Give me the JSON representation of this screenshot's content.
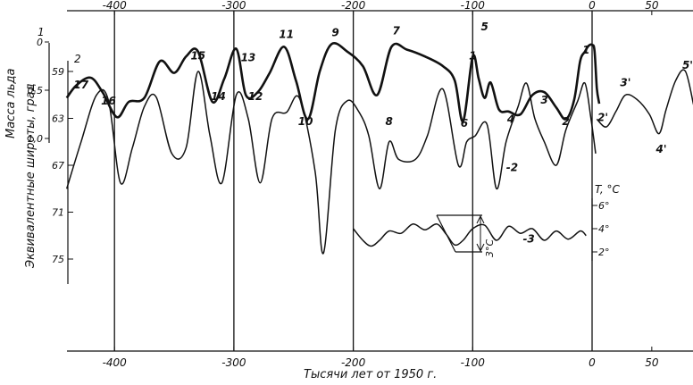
{
  "chart_data": {
    "type": "line",
    "xlabel": "Тысячи лет от 1950 г.",
    "x_ticks_bottom": [
      -400,
      -300,
      -200,
      -100,
      0,
      50
    ],
    "x_ticks_bottom_labels": [
      "-400",
      "-300",
      "-200",
      "-100",
      "0",
      "50"
    ],
    "x_ticks_top": [
      -400,
      -300,
      -200,
      -100,
      0,
      50
    ],
    "x_ticks_top_labels": [
      "-400",
      "-300",
      "-200",
      "-100",
      "0",
      "50"
    ],
    "xlim": [
      -440,
      85
    ],
    "axis_ice": {
      "label": "Масса льда",
      "ticks": [
        0,
        0.5,
        1.0
      ],
      "tick_labels": [
        "0",
        "0,5",
        "1,0"
      ],
      "extra_label": "1"
    },
    "axis_lat": {
      "label": "Эквивалентные широты, град",
      "ticks": [
        59,
        63,
        67,
        71,
        75
      ],
      "tick_labels": [
        "59",
        "63",
        "67",
        "71",
        "75"
      ],
      "extra_label": "2"
    },
    "axis_temp": {
      "label": "T, °C",
      "ticks": [
        6,
        4,
        2
      ],
      "tick_labels": [
        "6°",
        "4°",
        "2°"
      ],
      "scale_label": "3°C"
    },
    "series": [
      {
        "name": "1",
        "style": "thick",
        "x": [
          -440,
          -432,
          -420,
          -410,
          -398,
          -388,
          -375,
          -362,
          -350,
          -340,
          -330,
          -318,
          -308,
          -298,
          -290,
          -280,
          -270,
          -258,
          -248,
          -238,
          -228,
          -218,
          -205,
          -192,
          -180,
          -168,
          -155,
          -140,
          -125,
          -115,
          -108,
          -100,
          -95,
          -90,
          -85,
          -78,
          -70,
          -60,
          -50,
          -40,
          -30,
          -22,
          -15,
          -10,
          -6,
          -3,
          0,
          2,
          4,
          6
        ],
        "y": [
          0.58,
          0.45,
          0.37,
          0.52,
          0.78,
          0.62,
          0.58,
          0.2,
          0.32,
          0.15,
          0.1,
          0.62,
          0.38,
          0.07,
          0.55,
          0.52,
          0.32,
          0.05,
          0.4,
          0.8,
          0.3,
          0.02,
          0.1,
          0.25,
          0.55,
          0.05,
          0.08,
          0.15,
          0.25,
          0.4,
          0.82,
          0.15,
          0.38,
          0.58,
          0.42,
          0.7,
          0.72,
          0.75,
          0.55,
          0.52,
          0.68,
          0.8,
          0.6,
          0.2,
          0.1,
          0.04,
          0.03,
          0.09,
          0.48,
          0.64
        ]
      },
      {
        "name": "2",
        "style": "thin",
        "x": [
          -440,
          -428,
          -415,
          -405,
          -395,
          -385,
          -375,
          -365,
          -352,
          -340,
          -330,
          -320,
          -310,
          -298,
          -288,
          -278,
          -268,
          -256,
          -245,
          -232,
          -225,
          -215,
          -205,
          -195,
          -187,
          -178,
          -170,
          -162,
          -148,
          -138,
          -125,
          -112,
          -105,
          -98,
          -88,
          -80,
          -72,
          -62,
          -55,
          -48,
          -40,
          -30,
          -22,
          -12,
          -6,
          -1,
          3
        ],
        "y": [
          69.0,
          65.0,
          61.0,
          61.5,
          68.5,
          65.5,
          62.0,
          61.2,
          66.0,
          65.5,
          59.0,
          64.5,
          68.5,
          61.0,
          63.0,
          68.5,
          63.0,
          62.5,
          61.3,
          67.5,
          74.5,
          64.0,
          61.5,
          62.5,
          64.5,
          69.0,
          65.0,
          66.5,
          66.5,
          64.5,
          60.5,
          67.0,
          65.0,
          64.5,
          63.5,
          69.0,
          65.0,
          62.0,
          60.0,
          63.0,
          65.0,
          67.0,
          64.0,
          61.5,
          60.0,
          63.0,
          66.0
        ]
      },
      {
        "name": "3",
        "style": "thin",
        "x": [
          -200,
          -192,
          -185,
          -178,
          -170,
          -160,
          -150,
          -140,
          -130,
          -122,
          -115,
          -108,
          -100,
          -90,
          -80,
          -70,
          -60,
          -50,
          -40,
          -30,
          -20,
          -10,
          -5
        ],
        "y": [
          4.0,
          3.0,
          2.5,
          3.0,
          3.8,
          3.6,
          4.4,
          3.9,
          4.4,
          3.5,
          2.6,
          3.0,
          4.0,
          4.3,
          3.0,
          4.2,
          3.6,
          4.0,
          3.0,
          3.8,
          3.1,
          3.8,
          3.4
        ]
      },
      {
        "name": "",
        "style": "thin",
        "x": [
          4,
          12,
          20,
          28,
          38,
          48,
          56,
          62,
          70,
          78,
          85
        ],
        "y": [
          0.8,
          0.88,
          0.72,
          0.55,
          0.6,
          0.75,
          0.95,
          0.7,
          0.4,
          0.3,
          0.65
        ]
      }
    ],
    "point_labels_ice": [
      {
        "text": "1",
        "x": -100,
        "y": 0.18
      },
      {
        "text": "1",
        "x": -5,
        "y": 0.12
      },
      {
        "text": "2",
        "x": -22,
        "y": 0.86
      },
      {
        "text": "3",
        "x": -40,
        "y": 0.64
      },
      {
        "text": "4",
        "x": -68,
        "y": 0.84
      },
      {
        "text": "5",
        "x": -90,
        "y": -0.12
      },
      {
        "text": "6",
        "x": -107,
        "y": 0.88
      },
      {
        "text": "7",
        "x": -164,
        "y": -0.08
      },
      {
        "text": "8",
        "x": -170,
        "y": 0.86
      },
      {
        "text": "9",
        "x": -215,
        "y": -0.06
      },
      {
        "text": "10",
        "x": -240,
        "y": 0.86
      },
      {
        "text": "11",
        "x": -256,
        "y": -0.04
      },
      {
        "text": "12",
        "x": -282,
        "y": 0.6
      },
      {
        "text": "13",
        "x": -288,
        "y": 0.2
      },
      {
        "text": "14",
        "x": -313,
        "y": 0.6
      },
      {
        "text": "15",
        "x": -330,
        "y": 0.18
      },
      {
        "text": "16",
        "x": -405,
        "y": 0.65
      },
      {
        "text": "17",
        "x": -428,
        "y": 0.48
      },
      {
        "text": "2'",
        "x": 9,
        "y": 0.82
      },
      {
        "text": "3'",
        "x": 28,
        "y": 0.46
      },
      {
        "text": "4'",
        "x": 58,
        "y": 1.15
      },
      {
        "text": "5'",
        "x": 80,
        "y": 0.28
      }
    ],
    "series_labels": [
      {
        "text": "-2",
        "x": -72,
        "y": 67.5,
        "axis": "lat"
      },
      {
        "text": "-3",
        "x": -58,
        "y": 2.8,
        "axis": "temp"
      }
    ]
  }
}
